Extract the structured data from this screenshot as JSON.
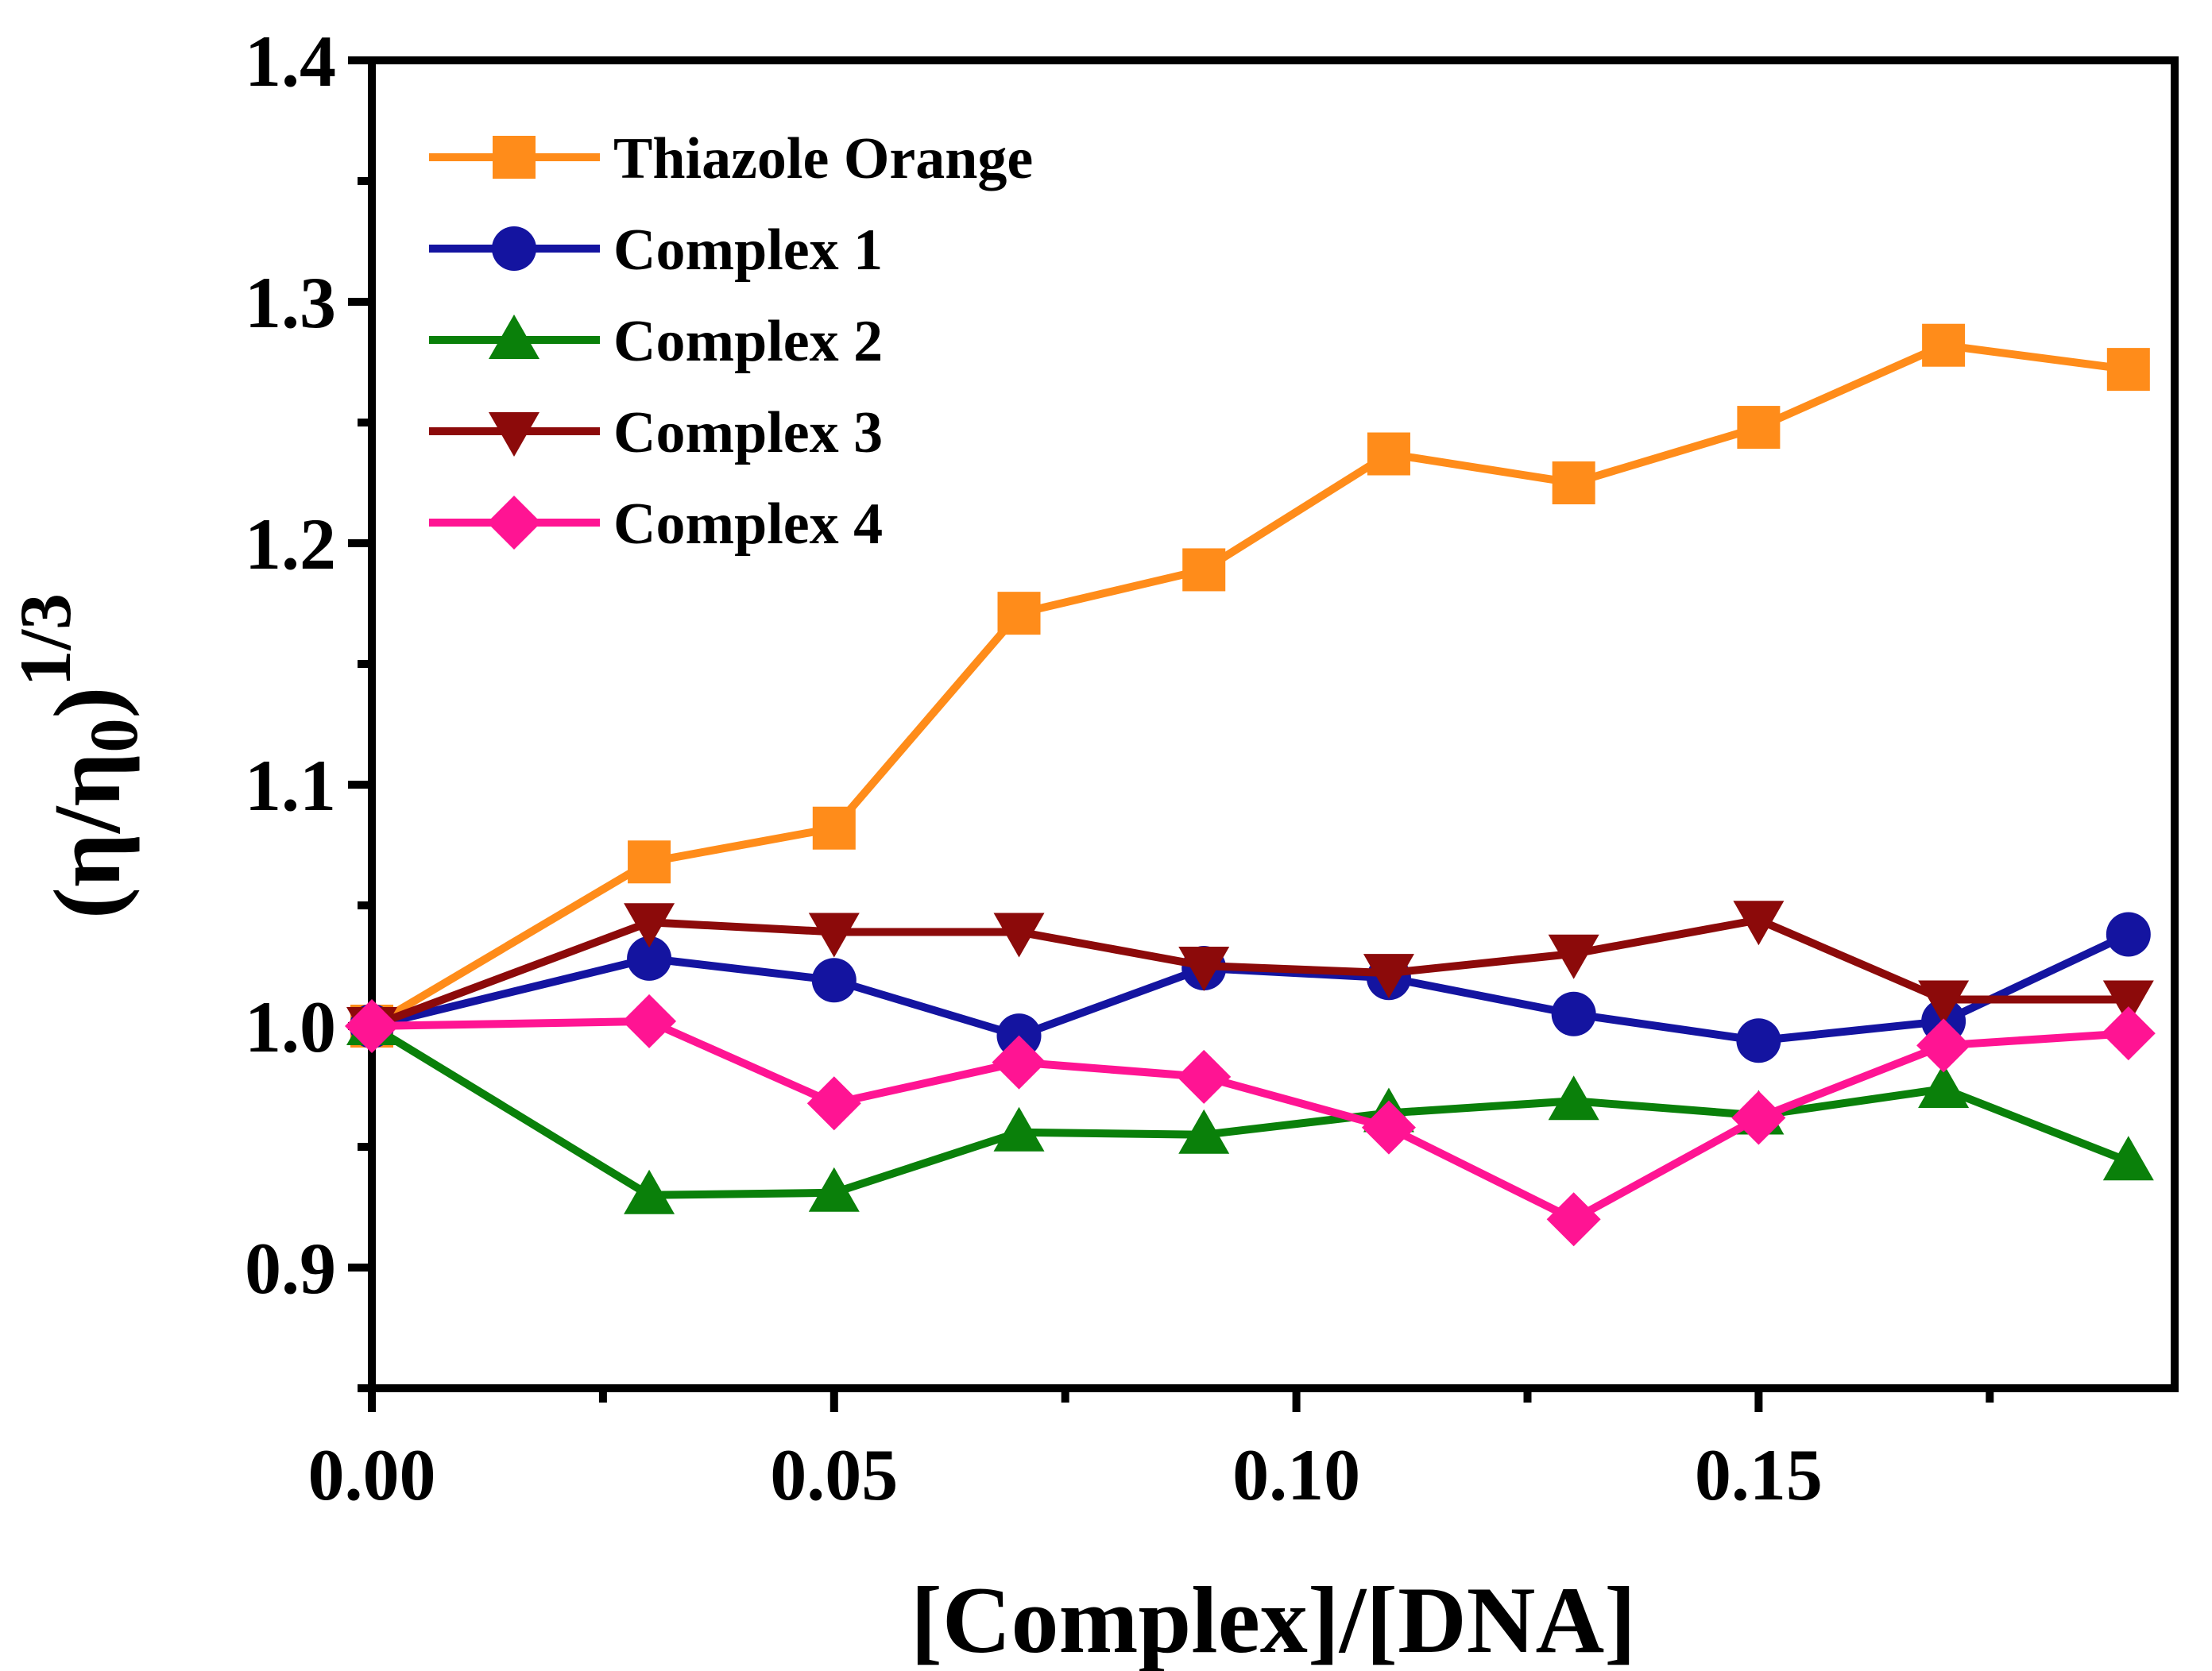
{
  "chart_data": {
    "type": "line",
    "xlabel": "[Complex]/[DNA]",
    "ylabel_base": "(η/η",
    "ylabel_sub": "0",
    "ylabel_close": ")",
    "ylabel_sup": "1/3",
    "xlim": [
      0,
      0.195
    ],
    "ylim": [
      0.85,
      1.4
    ],
    "x_ticks": [
      {
        "value": 0,
        "label": "0.00"
      },
      {
        "value": 0.05,
        "label": "0.05"
      },
      {
        "value": 0.1,
        "label": "0.10"
      },
      {
        "value": 0.15,
        "label": "0.15"
      }
    ],
    "x_minor_ticks": [
      0.025,
      0.075,
      0.125,
      0.175
    ],
    "y_ticks": [
      {
        "value": 0.9,
        "label": "0.9"
      },
      {
        "value": 1.0,
        "label": "1.0"
      },
      {
        "value": 1.1,
        "label": "1.1"
      },
      {
        "value": 1.2,
        "label": "1.2"
      },
      {
        "value": 1.3,
        "label": "1.3"
      },
      {
        "value": 1.4,
        "label": "1.4"
      }
    ],
    "y_minor_ticks": [
      0.85,
      0.95,
      1.05,
      1.15,
      1.25,
      1.35
    ],
    "grid": false,
    "legend_position": "top-left",
    "x": [
      0,
      0.03,
      0.05,
      0.07,
      0.09,
      0.11,
      0.13,
      0.15,
      0.17,
      0.19
    ],
    "series": [
      {
        "name": "Thiazole Orange",
        "color": "#FF8C1A",
        "marker": "square",
        "values": [
          1.0,
          1.068,
          1.082,
          1.171,
          1.189,
          1.237,
          1.225,
          1.248,
          1.282,
          1.272
        ]
      },
      {
        "name": "Complex 1",
        "color": "#1414A0",
        "marker": "circle",
        "values": [
          1.0,
          1.028,
          1.019,
          0.996,
          1.024,
          1.02,
          1.005,
          0.994,
          1.002,
          1.038
        ]
      },
      {
        "name": "Complex 2",
        "color": "#0A800A",
        "marker": "triangle-up",
        "values": [
          1.0,
          0.93,
          0.931,
          0.956,
          0.955,
          0.964,
          0.969,
          0.963,
          0.974,
          0.944
        ]
      },
      {
        "name": "Complex 3",
        "color": "#8C0A0A",
        "marker": "triangle-down",
        "values": [
          1.0,
          1.043,
          1.039,
          1.039,
          1.025,
          1.022,
          1.03,
          1.044,
          1.011,
          1.011
        ]
      },
      {
        "name": "Complex 4",
        "color": "#FF1493",
        "marker": "diamond",
        "values": [
          1.0,
          1.002,
          0.968,
          0.985,
          0.979,
          0.958,
          0.92,
          0.962,
          0.992,
          0.997
        ]
      }
    ]
  }
}
